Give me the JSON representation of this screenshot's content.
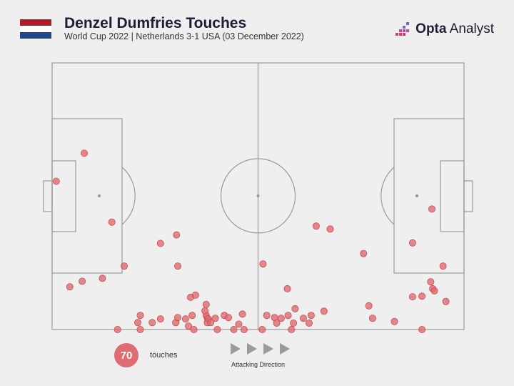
{
  "header": {
    "title": "Denzel Dumfries Touches",
    "subtitle": "World Cup 2022 | Netherlands 3-1 USA (03 December 2022)"
  },
  "brand": {
    "bold": "Opta",
    "light": " Analyst"
  },
  "flag": {
    "colors": [
      "#ae1c28",
      "#ffffff",
      "#21468b"
    ]
  },
  "colors": {
    "touch": "#e06b70",
    "pitch_line": "#9a9a9a",
    "arrow": "#9a9a9a"
  },
  "legend": {
    "count": "70",
    "label": "touches",
    "direction_label": "Attacking Direction"
  },
  "chart_data": {
    "type": "scatter",
    "x_range": [
      0,
      100
    ],
    "y_range": [
      0,
      100
    ],
    "points": [
      [
        7.8,
        66.1
      ],
      [
        1.0,
        55.6
      ],
      [
        14.5,
        40.3
      ],
      [
        12.2,
        19.2
      ],
      [
        4.3,
        16.0
      ],
      [
        7.3,
        18.1
      ],
      [
        17.5,
        23.8
      ],
      [
        26.3,
        32.3
      ],
      [
        30.2,
        35.5
      ],
      [
        30.5,
        23.8
      ],
      [
        21.4,
        5.3
      ],
      [
        20.8,
        2.6
      ],
      [
        15.9,
        0.0
      ],
      [
        21.4,
        0.0
      ],
      [
        24.3,
        2.6
      ],
      [
        26.3,
        4.0
      ],
      [
        30.0,
        2.6
      ],
      [
        30.5,
        4.5
      ],
      [
        32.4,
        4.0
      ],
      [
        34.0,
        5.3
      ],
      [
        33.1,
        1.3
      ],
      [
        34.4,
        0.0
      ],
      [
        33.6,
        12.1
      ],
      [
        34.8,
        12.9
      ],
      [
        37.4,
        9.4
      ],
      [
        37.7,
        4.2
      ],
      [
        37.4,
        5.3
      ],
      [
        37.7,
        2.6
      ],
      [
        37.1,
        7.0
      ],
      [
        37.9,
        4.0
      ],
      [
        38.5,
        2.6
      ],
      [
        39.6,
        4.2
      ],
      [
        40.1,
        0.0
      ],
      [
        41.8,
        5.3
      ],
      [
        42.8,
        4.5
      ],
      [
        44.1,
        0.0
      ],
      [
        45.3,
        2.0
      ],
      [
        46.6,
        0.0
      ],
      [
        46.2,
        5.8
      ],
      [
        51.2,
        24.6
      ],
      [
        51.0,
        0.0
      ],
      [
        52.1,
        5.3
      ],
      [
        54.0,
        4.5
      ],
      [
        54.5,
        2.4
      ],
      [
        55.6,
        4.2
      ],
      [
        57.1,
        15.3
      ],
      [
        57.3,
        5.3
      ],
      [
        58.6,
        2.4
      ],
      [
        58.1,
        0.0
      ],
      [
        59.0,
        7.8
      ],
      [
        61.0,
        4.2
      ],
      [
        62.4,
        2.4
      ],
      [
        62.9,
        5.3
      ],
      [
        66.0,
        6.9
      ],
      [
        64.1,
        38.8
      ],
      [
        67.5,
        37.7
      ],
      [
        75.6,
        28.5
      ],
      [
        77.8,
        4.2
      ],
      [
        76.9,
        8.9
      ],
      [
        83.1,
        3.0
      ],
      [
        87.5,
        12.3
      ],
      [
        87.5,
        32.5
      ],
      [
        89.8,
        12.5
      ],
      [
        89.8,
        0.0
      ],
      [
        91.9,
        17.9
      ],
      [
        92.4,
        15.3
      ],
      [
        92.8,
        14.5
      ],
      [
        92.2,
        45.2
      ],
      [
        94.9,
        23.8
      ],
      [
        95.6,
        10.5
      ]
    ]
  }
}
